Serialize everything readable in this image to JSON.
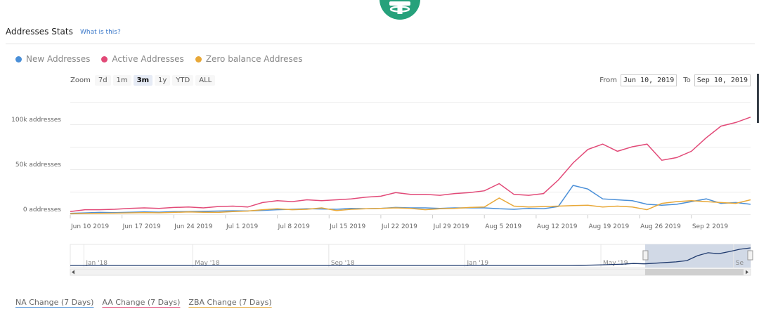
{
  "header": {
    "title": "Addresses Stats",
    "help_link": "What is this?"
  },
  "legend": [
    {
      "label": "New Addresses",
      "color": "#4a8fd8"
    },
    {
      "label": "Active Addresses",
      "color": "#e24a78"
    },
    {
      "label": "Zero balance Addreses",
      "color": "#e8a838"
    }
  ],
  "zoom": {
    "label": "Zoom",
    "buttons": [
      "7d",
      "1m",
      "3m",
      "1y",
      "YTD",
      "ALL"
    ],
    "selected": "3m"
  },
  "range": {
    "from_label": "From",
    "from": "Jun 10, 2019",
    "to_label": "To",
    "to": "Sep 10, 2019"
  },
  "chart_data": {
    "type": "line",
    "x": [
      "Jun 10",
      "Jun 12",
      "Jun 14",
      "Jun 16",
      "Jun 18",
      "Jun 20",
      "Jun 22",
      "Jun 24",
      "Jun 26",
      "Jun 28",
      "Jun 30",
      "Jul 2",
      "Jul 4",
      "Jul 6",
      "Jul 8",
      "Jul 10",
      "Jul 12",
      "Jul 14",
      "Jul 16",
      "Jul 18",
      "Jul 20",
      "Jul 22",
      "Jul 24",
      "Jul 26",
      "Jul 28",
      "Jul 30",
      "Aug 1",
      "Aug 3",
      "Aug 5",
      "Aug 7",
      "Aug 9",
      "Aug 11",
      "Aug 13",
      "Aug 15",
      "Aug 17",
      "Aug 19",
      "Aug 21",
      "Aug 23",
      "Aug 25",
      "Aug 27",
      "Aug 29",
      "Aug 31",
      "Sep 2",
      "Sep 4",
      "Sep 6",
      "Sep 8",
      "Sep 10"
    ],
    "series": [
      {
        "name": "New Addresses",
        "color": "#4a8fd8",
        "values": [
          1000,
          1500,
          2000,
          1800,
          2200,
          2500,
          2300,
          2800,
          3000,
          3200,
          3500,
          3800,
          3600,
          4200,
          5000,
          5500,
          6000,
          5800,
          5500,
          6500,
          6000,
          6500,
          7500,
          7000,
          7000,
          6500,
          7000,
          7000,
          7000,
          6000,
          5500,
          6500,
          6000,
          8500,
          32000,
          28000,
          17000,
          16000,
          15000,
          11000,
          10000,
          11000,
          14000,
          17000,
          12000,
          13000,
          11000
        ]
      },
      {
        "name": "Active Addresses",
        "color": "#e24a78",
        "values": [
          3000,
          5000,
          5000,
          5500,
          6500,
          7000,
          6500,
          7500,
          8000,
          7000,
          8500,
          9000,
          8000,
          13000,
          15000,
          14000,
          16000,
          15000,
          16000,
          17000,
          19000,
          20000,
          24000,
          22000,
          22000,
          21000,
          23000,
          24000,
          26000,
          34000,
          22000,
          21000,
          23000,
          38000,
          57000,
          72000,
          78000,
          70000,
          75000,
          78000,
          60000,
          63000,
          70000,
          85000,
          98000,
          102000,
          108000
        ]
      },
      {
        "name": "Zero balance Addreses",
        "color": "#e8a838",
        "values": [
          500,
          800,
          1000,
          1200,
          1500,
          1800,
          1600,
          2000,
          2500,
          2200,
          2000,
          3000,
          3500,
          5000,
          6000,
          5000,
          5500,
          7000,
          4000,
          5500,
          6000,
          6500,
          7000,
          6500,
          5000,
          6000,
          6500,
          7500,
          8000,
          18000,
          9000,
          8000,
          8500,
          9000,
          9500,
          10000,
          8000,
          9000,
          8000,
          5000,
          12000,
          14000,
          15000,
          14000,
          13000,
          12000,
          16000
        ]
      }
    ],
    "y_ticks": [
      {
        "value": 0,
        "label": "0 addresses"
      },
      {
        "value": 50000,
        "label": "50k addresses"
      },
      {
        "value": 100000,
        "label": "100k addresses"
      }
    ],
    "x_ticks": [
      {
        "index": 0,
        "label": "Jun 10 2019"
      },
      {
        "index": 3.5,
        "label": "Jun 17 2019"
      },
      {
        "index": 7,
        "label": "Jun 24 2019"
      },
      {
        "index": 10.5,
        "label": "Jul 1 2019"
      },
      {
        "index": 14,
        "label": "Jul 8 2019"
      },
      {
        "index": 17.5,
        "label": "Jul 15 2019"
      },
      {
        "index": 21,
        "label": "Jul 22 2019"
      },
      {
        "index": 24.5,
        "label": "Jul 29 2019"
      },
      {
        "index": 28,
        "label": "Aug 5 2019"
      },
      {
        "index": 31.5,
        "label": "Aug 12 2019"
      },
      {
        "index": 35,
        "label": "Aug 19 2019"
      },
      {
        "index": 38.5,
        "label": "Aug 26 2019"
      },
      {
        "index": 42,
        "label": "Sep 2 2019"
      }
    ],
    "ylim": [
      0,
      125000
    ],
    "grid": true,
    "legend_position": "top-left"
  },
  "navigator": {
    "labels": [
      "Jan '18",
      "May '18",
      "Sep '18",
      "Jan '19",
      "May '19",
      "Se"
    ],
    "selected_fraction": [
      0.845,
      1.0
    ],
    "series_values": [
      0,
      0,
      0,
      0,
      0,
      0,
      0,
      0,
      0,
      0,
      0,
      0,
      0,
      0,
      0,
      0,
      0,
      0,
      0,
      0,
      0,
      0,
      0,
      0,
      0,
      0,
      0,
      0,
      0,
      0,
      0,
      0,
      0,
      0,
      0,
      0,
      0,
      0,
      0,
      0,
      0,
      0,
      0,
      0,
      0,
      0,
      0,
      0,
      1000,
      2000,
      4000,
      6000,
      8000,
      12000,
      10000,
      14000,
      18000,
      22000,
      30000,
      60000,
      78000,
      72000,
      85000,
      100000,
      108000
    ]
  },
  "bottom_links": [
    "NA Change (7 Days)",
    "AA Change (7 Days)",
    "ZBA Change (7 Days)"
  ]
}
